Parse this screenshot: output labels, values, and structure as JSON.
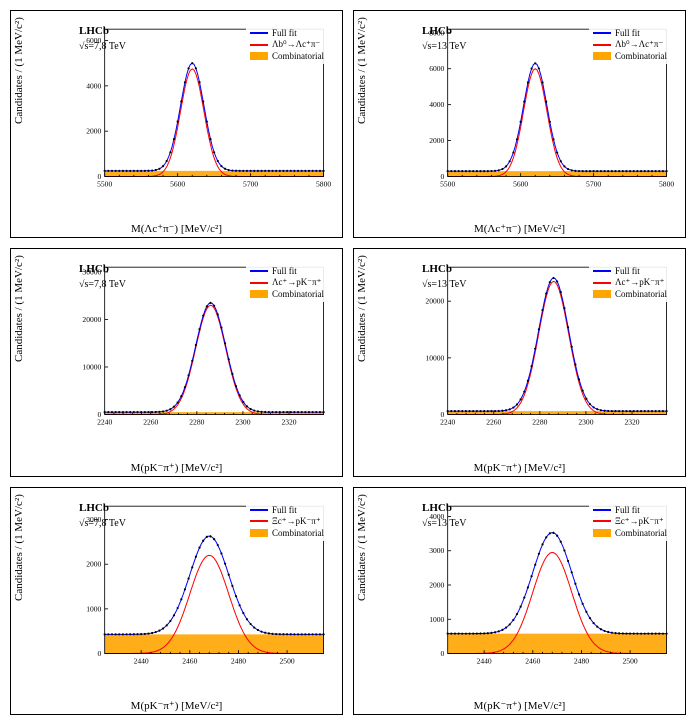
{
  "panels": [
    {
      "title_line1": "LHCb",
      "title_line2": "√s=7,8 TeV",
      "xlabel": "M(Λc⁺π⁻) [MeV/c²]",
      "ylabel": "Candidates / (1 MeV/c²)",
      "xlim": [
        5500,
        5800
      ],
      "ylim": [
        0,
        6500
      ],
      "xticks": [
        5500,
        5600,
        5700,
        5800
      ],
      "yticks": [
        0,
        2000,
        4000,
        6000
      ],
      "mean": 5620,
      "sigma": 16,
      "amp": 4750,
      "bkg": 250,
      "legend": [
        {
          "type": "line",
          "color": "#0000ff",
          "label": "Full fit"
        },
        {
          "type": "line",
          "color": "#ff0000",
          "label": "Λb⁰→Λc⁺π⁻"
        },
        {
          "type": "box",
          "color": "#ffa500",
          "label": "Combinatorial"
        }
      ],
      "colors": {
        "full": "#0000ff",
        "sig": "#ff0000",
        "bkg": "#ffa500",
        "data": "#000000"
      }
    },
    {
      "title_line1": "LHCb",
      "title_line2": "√s=13 TeV",
      "xlabel": "M(Λc⁺π⁻) [MeV/c²]",
      "ylabel": "Candidates / (1 MeV/c²)",
      "xlim": [
        5500,
        5800
      ],
      "ylim": [
        0,
        8200
      ],
      "xticks": [
        5500,
        5600,
        5700,
        5800
      ],
      "yticks": [
        0,
        2000,
        4000,
        6000,
        8000
      ],
      "mean": 5620,
      "sigma": 16,
      "amp": 6000,
      "bkg": 300,
      "legend": [
        {
          "type": "line",
          "color": "#0000ff",
          "label": "Full fit"
        },
        {
          "type": "line",
          "color": "#ff0000",
          "label": "Λb⁰→Λc⁺π⁻"
        },
        {
          "type": "box",
          "color": "#ffa500",
          "label": "Combinatorial"
        }
      ],
      "colors": {
        "full": "#0000ff",
        "sig": "#ff0000",
        "bkg": "#ffa500",
        "data": "#000000"
      }
    },
    {
      "title_line1": "LHCb",
      "title_line2": "√s=7,8 TeV",
      "xlabel": "M(pK⁻π⁺) [MeV/c²]",
      "ylabel": "Candidates / (1 MeV/c²)",
      "xlim": [
        2240,
        2335
      ],
      "ylim": [
        0,
        31000
      ],
      "xticks": [
        2240,
        2260,
        2280,
        2300,
        2320
      ],
      "yticks": [
        0,
        10000,
        20000,
        30000
      ],
      "mean": 2286,
      "sigma": 6.5,
      "amp": 23000,
      "bkg": 500,
      "legend": [
        {
          "type": "line",
          "color": "#0000ff",
          "label": "Full fit"
        },
        {
          "type": "line",
          "color": "#ff0000",
          "label": "Λc⁺→pK⁻π⁺"
        },
        {
          "type": "box",
          "color": "#ffa500",
          "label": "Combinatorial"
        }
      ],
      "colors": {
        "full": "#0000ff",
        "sig": "#ff0000",
        "bkg": "#ffa500",
        "data": "#000000"
      }
    },
    {
      "title_line1": "LHCb",
      "title_line2": "√s=13 TeV",
      "xlabel": "M(pK⁻π⁺) [MeV/c²]",
      "ylabel": "Candidates / (1 MeV/c²)",
      "xlim": [
        2240,
        2335
      ],
      "ylim": [
        0,
        26000
      ],
      "xticks": [
        2240,
        2260,
        2280,
        2300,
        2320
      ],
      "yticks": [
        0,
        10000,
        20000
      ],
      "mean": 2286,
      "sigma": 6.5,
      "amp": 23500,
      "bkg": 600,
      "legend": [
        {
          "type": "line",
          "color": "#0000ff",
          "label": "Full fit"
        },
        {
          "type": "line",
          "color": "#ff0000",
          "label": "Λc⁺→pK⁻π⁺"
        },
        {
          "type": "box",
          "color": "#ffa500",
          "label": "Combinatorial"
        }
      ],
      "colors": {
        "full": "#0000ff",
        "sig": "#ff0000",
        "bkg": "#ffa500",
        "data": "#000000"
      }
    },
    {
      "title_line1": "LHCb",
      "title_line2": "√s=7,8 TeV",
      "xlabel": "M(pK⁻π⁺) [MeV/c²]",
      "ylabel": "Candidates / (1 MeV/c²)",
      "xlim": [
        2425,
        2515
      ],
      "ylim": [
        0,
        3300
      ],
      "xticks": [
        2440,
        2460,
        2480,
        2500
      ],
      "yticks": [
        0,
        1000,
        2000,
        3000
      ],
      "mean": 2468,
      "sigma": 8,
      "amp": 2200,
      "bkg": 430,
      "legend": [
        {
          "type": "line",
          "color": "#0000ff",
          "label": "Full fit"
        },
        {
          "type": "line",
          "color": "#ff0000",
          "label": "Ξc⁺→pK⁻π⁺"
        },
        {
          "type": "box",
          "color": "#ffa500",
          "label": "Combinatorial"
        }
      ],
      "colors": {
        "full": "#0000ff",
        "sig": "#ff0000",
        "bkg": "#ffa500",
        "data": "#000000"
      }
    },
    {
      "title_line1": "LHCb",
      "title_line2": "√s=13 TeV",
      "xlabel": "M(pK⁻π⁺) [MeV/c²]",
      "ylabel": "Candidates / (1 MeV/c²)",
      "xlim": [
        2425,
        2515
      ],
      "ylim": [
        0,
        4300
      ],
      "xticks": [
        2440,
        2460,
        2480,
        2500
      ],
      "yticks": [
        0,
        1000,
        2000,
        3000,
        4000
      ],
      "mean": 2468,
      "sigma": 8,
      "amp": 2950,
      "bkg": 580,
      "legend": [
        {
          "type": "line",
          "color": "#0000ff",
          "label": "Full fit"
        },
        {
          "type": "line",
          "color": "#ff0000",
          "label": "Ξc⁺→pK⁻π⁺"
        },
        {
          "type": "box",
          "color": "#ffa500",
          "label": "Combinatorial"
        }
      ],
      "colors": {
        "full": "#0000ff",
        "sig": "#ff0000",
        "bkg": "#ffa500",
        "data": "#000000"
      }
    }
  ]
}
